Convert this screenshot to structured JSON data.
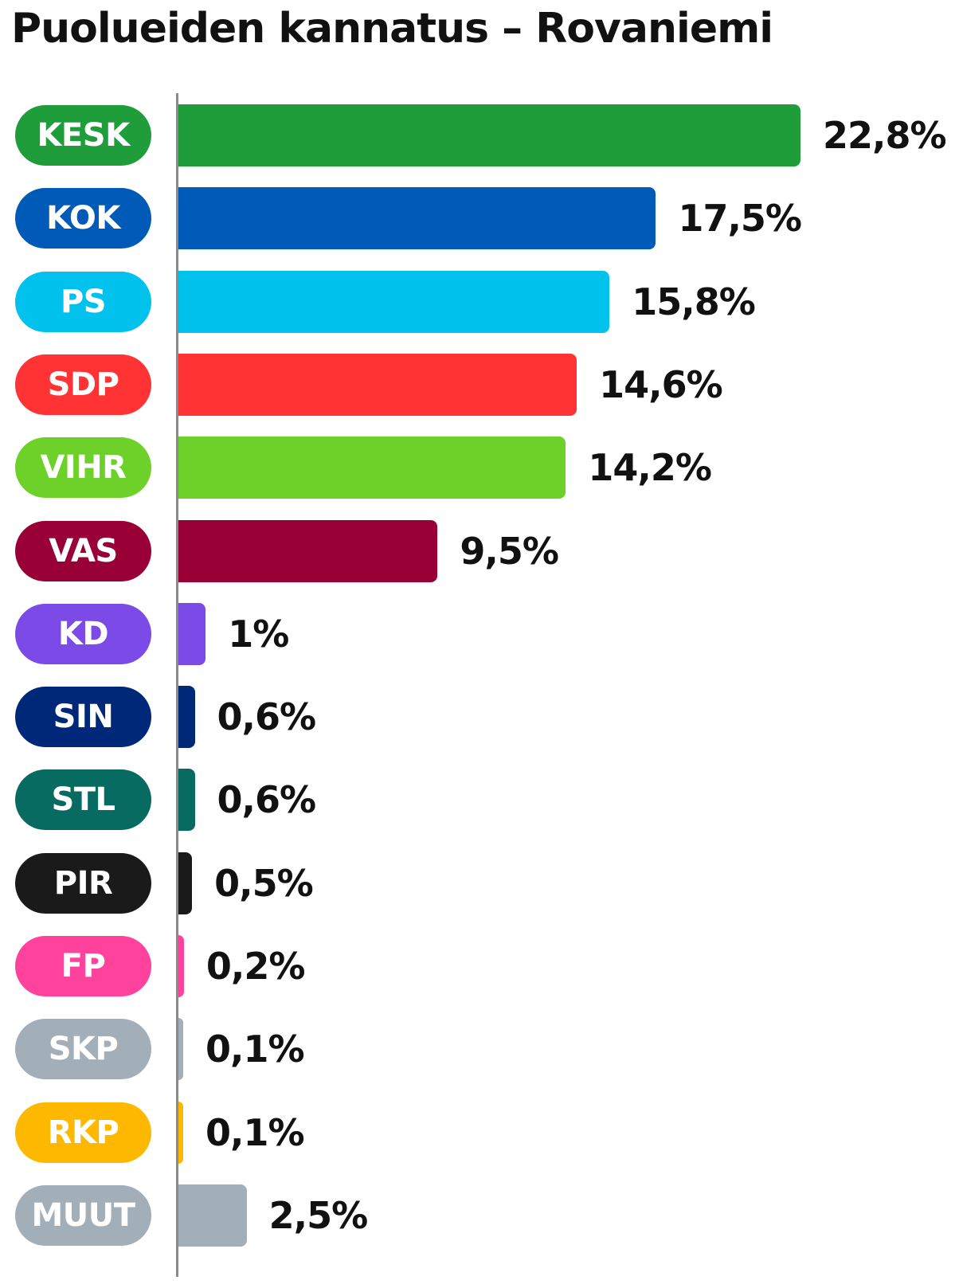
{
  "title": "Puolueiden kannatus – Rovaniemi",
  "chart_data": {
    "type": "bar",
    "orientation": "horizontal",
    "title": "Puolueiden kannatus – Rovaniemi",
    "categories": [
      "KESK",
      "KOK",
      "PS",
      "SDP",
      "VIHR",
      "VAS",
      "KD",
      "SIN",
      "STL",
      "PIR",
      "FP",
      "SKP",
      "RKP",
      "MUUT"
    ],
    "values": [
      22.8,
      17.5,
      15.8,
      14.6,
      14.2,
      9.5,
      1,
      0.6,
      0.6,
      0.5,
      0.2,
      0.1,
      0.1,
      2.5
    ],
    "value_labels": [
      "22,8%",
      "17,5%",
      "15,8%",
      "14,6%",
      "14,2%",
      "9,5%",
      "1%",
      "0,6%",
      "0,6%",
      "0,5%",
      "0,2%",
      "0,1%",
      "0,1%",
      "2,5%"
    ],
    "colors": [
      "#1f9d3a",
      "#005bb8",
      "#00c2ec",
      "#ff3333",
      "#6dd12a",
      "#990036",
      "#7c4ae6",
      "#002878",
      "#076b61",
      "#1a1a1a",
      "#ff439d",
      "#a2afb8",
      "#ffb800",
      "#a2afb8"
    ],
    "unit": "%",
    "xlim": [
      0,
      22.8
    ],
    "grid": false,
    "legend": "none"
  }
}
